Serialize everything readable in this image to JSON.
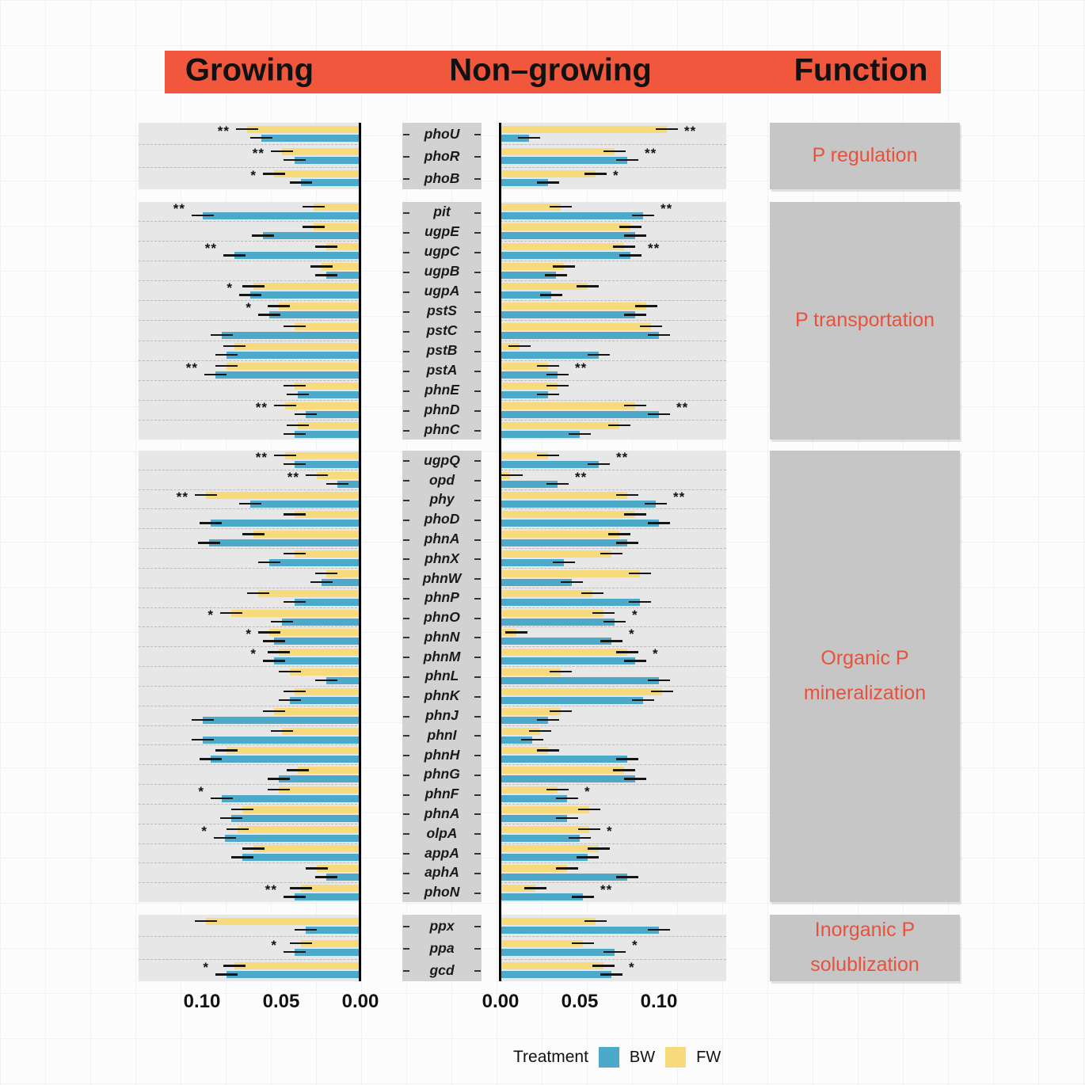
{
  "header": {
    "growing": "Growing",
    "non_growing": "Non–growing",
    "function": "Function"
  },
  "axis": {
    "growing_ticks": [
      "0.10",
      "0.05",
      "0.00"
    ],
    "non_growing_ticks": [
      "0.00",
      "0.05",
      "0.10"
    ]
  },
  "legend": {
    "title": "Treatment",
    "series": [
      {
        "label": "BW",
        "color": "#4da9c9"
      },
      {
        "label": "FW",
        "color": "#f7da7c"
      }
    ]
  },
  "colors": {
    "bw": "#4da9c9",
    "fw": "#f7da7c",
    "header": "#f1573c",
    "function_text": "#e8513b",
    "panel_bg": "#e7e7e7",
    "label_bg": "#d2d2d2",
    "function_bg": "#c6c6c6"
  },
  "chart_data": {
    "type": "bar",
    "orientation": "horizontal",
    "panels": [
      "Growing",
      "Non-growing"
    ],
    "series": [
      "BW",
      "FW"
    ],
    "xlim": [
      0,
      0.13
    ],
    "error_bar_halfwidth": 0.007,
    "significance_note": "* and ** markers drawn beyond longest bar of the row",
    "groups": [
      {
        "function": "P regulation",
        "function_lines": [
          "P regulation"
        ],
        "genes": [
          {
            "name": "phoU",
            "growing": {
              "BW": 0.063,
              "FW": 0.072,
              "sig": "**"
            },
            "non_growing": {
              "BW": 0.018,
              "FW": 0.105,
              "sig": "**"
            }
          },
          {
            "name": "phoR",
            "growing": {
              "BW": 0.042,
              "FW": 0.05,
              "sig": "**"
            },
            "non_growing": {
              "BW": 0.08,
              "FW": 0.072,
              "sig": "**"
            }
          },
          {
            "name": "phoB",
            "growing": {
              "BW": 0.038,
              "FW": 0.055,
              "sig": "*"
            },
            "non_growing": {
              "BW": 0.03,
              "FW": 0.06,
              "sig": "*"
            }
          }
        ]
      },
      {
        "function": "P transportation",
        "function_lines": [
          "P transportation"
        ],
        "genes": [
          {
            "name": "pit",
            "growing": {
              "BW": 0.1,
              "FW": 0.03,
              "sig": "**"
            },
            "non_growing": {
              "BW": 0.09,
              "FW": 0.038,
              "sig": "**"
            }
          },
          {
            "name": "ugpE",
            "growing": {
              "BW": 0.062,
              "FW": 0.03,
              "sig": ""
            },
            "non_growing": {
              "BW": 0.085,
              "FW": 0.082,
              "sig": ""
            }
          },
          {
            "name": "ugpC",
            "growing": {
              "BW": 0.08,
              "FW": 0.022,
              "sig": "**"
            },
            "non_growing": {
              "BW": 0.082,
              "FW": 0.078,
              "sig": "**"
            }
          },
          {
            "name": "ugpB",
            "growing": {
              "BW": 0.022,
              "FW": 0.025,
              "sig": ""
            },
            "non_growing": {
              "BW": 0.035,
              "FW": 0.04,
              "sig": ""
            }
          },
          {
            "name": "ugpA",
            "growing": {
              "BW": 0.07,
              "FW": 0.068,
              "sig": "*"
            },
            "non_growing": {
              "BW": 0.032,
              "FW": 0.055,
              "sig": ""
            }
          },
          {
            "name": "pstS",
            "growing": {
              "BW": 0.058,
              "FW": 0.052,
              "sig": "*"
            },
            "non_growing": {
              "BW": 0.085,
              "FW": 0.092,
              "sig": ""
            }
          },
          {
            "name": "pstC",
            "growing": {
              "BW": 0.088,
              "FW": 0.042,
              "sig": ""
            },
            "non_growing": {
              "BW": 0.1,
              "FW": 0.095,
              "sig": ""
            }
          },
          {
            "name": "pstB",
            "growing": {
              "BW": 0.085,
              "FW": 0.08,
              "sig": ""
            },
            "non_growing": {
              "BW": 0.062,
              "FW": 0.012,
              "sig": ""
            }
          },
          {
            "name": "pstA",
            "growing": {
              "BW": 0.092,
              "FW": 0.085,
              "sig": "**"
            },
            "non_growing": {
              "BW": 0.036,
              "FW": 0.03,
              "sig": "**"
            }
          },
          {
            "name": "phnE",
            "growing": {
              "BW": 0.04,
              "FW": 0.042,
              "sig": ""
            },
            "non_growing": {
              "BW": 0.03,
              "FW": 0.036,
              "sig": ""
            }
          },
          {
            "name": "phnD",
            "growing": {
              "BW": 0.035,
              "FW": 0.048,
              "sig": "**"
            },
            "non_growing": {
              "BW": 0.1,
              "FW": 0.085,
              "sig": "**"
            }
          },
          {
            "name": "phnC",
            "growing": {
              "BW": 0.042,
              "FW": 0.04,
              "sig": ""
            },
            "non_growing": {
              "BW": 0.05,
              "FW": 0.075,
              "sig": ""
            }
          }
        ]
      },
      {
        "function": "Organic P mineralization",
        "function_lines": [
          "Organic P",
          "mineralization"
        ],
        "genes": [
          {
            "name": "ugpQ",
            "growing": {
              "BW": 0.042,
              "FW": 0.048,
              "sig": "**"
            },
            "non_growing": {
              "BW": 0.062,
              "FW": 0.03,
              "sig": "**"
            }
          },
          {
            "name": "opd",
            "growing": {
              "BW": 0.015,
              "FW": 0.028,
              "sig": "**"
            },
            "non_growing": {
              "BW": 0.036,
              "FW": 0.006,
              "sig": "**"
            }
          },
          {
            "name": "phy",
            "growing": {
              "BW": 0.07,
              "FW": 0.098,
              "sig": "**"
            },
            "non_growing": {
              "BW": 0.098,
              "FW": 0.08,
              "sig": "**"
            }
          },
          {
            "name": "phoD",
            "growing": {
              "BW": 0.095,
              "FW": 0.042,
              "sig": ""
            },
            "non_growing": {
              "BW": 0.1,
              "FW": 0.085,
              "sig": ""
            }
          },
          {
            "name": "phnA",
            "growing": {
              "BW": 0.096,
              "FW": 0.068,
              "sig": ""
            },
            "non_growing": {
              "BW": 0.08,
              "FW": 0.075,
              "sig": ""
            }
          },
          {
            "name": "phnX",
            "growing": {
              "BW": 0.058,
              "FW": 0.042,
              "sig": ""
            },
            "non_growing": {
              "BW": 0.04,
              "FW": 0.07,
              "sig": ""
            }
          },
          {
            "name": "phnW",
            "growing": {
              "BW": 0.025,
              "FW": 0.022,
              "sig": ""
            },
            "non_growing": {
              "BW": 0.045,
              "FW": 0.088,
              "sig": ""
            }
          },
          {
            "name": "phnP",
            "growing": {
              "BW": 0.042,
              "FW": 0.065,
              "sig": ""
            },
            "non_growing": {
              "BW": 0.088,
              "FW": 0.058,
              "sig": ""
            }
          },
          {
            "name": "phnO",
            "growing": {
              "BW": 0.05,
              "FW": 0.082,
              "sig": "*"
            },
            "non_growing": {
              "BW": 0.072,
              "FW": 0.065,
              "sig": "*"
            }
          },
          {
            "name": "phnN",
            "growing": {
              "BW": 0.055,
              "FW": 0.058,
              "sig": "*"
            },
            "non_growing": {
              "BW": 0.07,
              "FW": 0.01,
              "sig": "*"
            }
          },
          {
            "name": "phnM",
            "growing": {
              "BW": 0.055,
              "FW": 0.052,
              "sig": "*"
            },
            "non_growing": {
              "BW": 0.085,
              "FW": 0.08,
              "sig": "*"
            }
          },
          {
            "name": "phnL",
            "growing": {
              "BW": 0.022,
              "FW": 0.045,
              "sig": ""
            },
            "non_growing": {
              "BW": 0.1,
              "FW": 0.038,
              "sig": ""
            }
          },
          {
            "name": "phnK",
            "growing": {
              "BW": 0.045,
              "FW": 0.042,
              "sig": ""
            },
            "non_growing": {
              "BW": 0.09,
              "FW": 0.102,
              "sig": ""
            }
          },
          {
            "name": "phnJ",
            "growing": {
              "BW": 0.1,
              "FW": 0.055,
              "sig": ""
            },
            "non_growing": {
              "BW": 0.03,
              "FW": 0.038,
              "sig": ""
            }
          },
          {
            "name": "phnI",
            "growing": {
              "BW": 0.1,
              "FW": 0.05,
              "sig": ""
            },
            "non_growing": {
              "BW": 0.02,
              "FW": 0.025,
              "sig": ""
            }
          },
          {
            "name": "phnH",
            "growing": {
              "BW": 0.095,
              "FW": 0.085,
              "sig": ""
            },
            "non_growing": {
              "BW": 0.08,
              "FW": 0.03,
              "sig": ""
            }
          },
          {
            "name": "phnG",
            "growing": {
              "BW": 0.052,
              "FW": 0.04,
              "sig": ""
            },
            "non_growing": {
              "BW": 0.085,
              "FW": 0.078,
              "sig": ""
            }
          },
          {
            "name": "phnF",
            "growing": {
              "BW": 0.088,
              "FW": 0.052,
              "sig": "*"
            },
            "non_growing": {
              "BW": 0.042,
              "FW": 0.036,
              "sig": "*"
            }
          },
          {
            "name": "phnA",
            "growing": {
              "BW": 0.082,
              "FW": 0.075,
              "sig": ""
            },
            "non_growing": {
              "BW": 0.042,
              "FW": 0.056,
              "sig": ""
            }
          },
          {
            "name": "olpA",
            "growing": {
              "BW": 0.086,
              "FW": 0.078,
              "sig": "*"
            },
            "non_growing": {
              "BW": 0.05,
              "FW": 0.056,
              "sig": "*"
            }
          },
          {
            "name": "appA",
            "growing": {
              "BW": 0.075,
              "FW": 0.068,
              "sig": ""
            },
            "non_growing": {
              "BW": 0.055,
              "FW": 0.062,
              "sig": ""
            }
          },
          {
            "name": "aphA",
            "growing": {
              "BW": 0.022,
              "FW": 0.028,
              "sig": ""
            },
            "non_growing": {
              "BW": 0.08,
              "FW": 0.042,
              "sig": ""
            }
          },
          {
            "name": "phoN",
            "growing": {
              "BW": 0.042,
              "FW": 0.038,
              "sig": "**"
            },
            "non_growing": {
              "BW": 0.052,
              "FW": 0.022,
              "sig": "**"
            }
          }
        ]
      },
      {
        "function": "Inorganic P solublization",
        "function_lines": [
          "Inorganic P",
          "solublization"
        ],
        "genes": [
          {
            "name": "ppx",
            "growing": {
              "BW": 0.035,
              "FW": 0.098,
              "sig": ""
            },
            "non_growing": {
              "BW": 0.1,
              "FW": 0.06,
              "sig": ""
            }
          },
          {
            "name": "ppa",
            "growing": {
              "BW": 0.042,
              "FW": 0.038,
              "sig": "*"
            },
            "non_growing": {
              "BW": 0.072,
              "FW": 0.052,
              "sig": "*"
            }
          },
          {
            "name": "gcd",
            "growing": {
              "BW": 0.085,
              "FW": 0.08,
              "sig": "*"
            },
            "non_growing": {
              "BW": 0.07,
              "FW": 0.065,
              "sig": "*"
            }
          }
        ]
      }
    ]
  }
}
